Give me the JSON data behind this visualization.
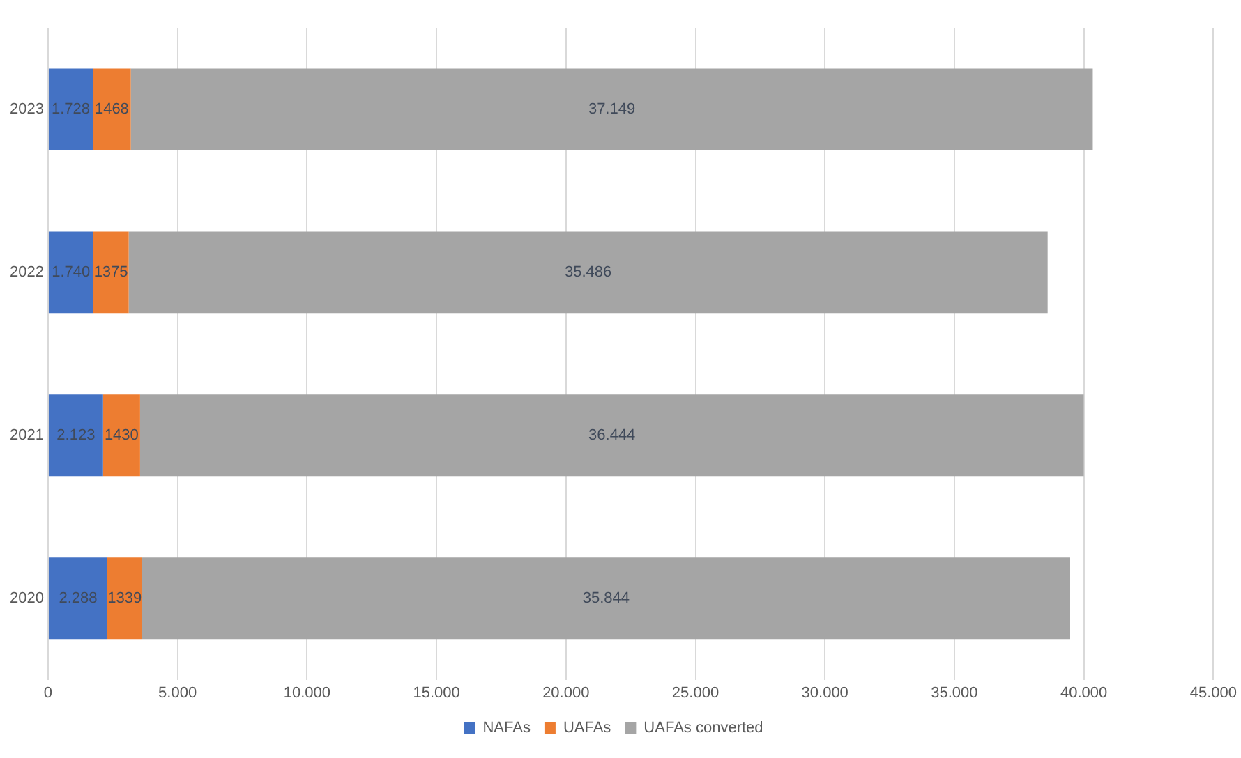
{
  "chart_data": {
    "type": "bar",
    "orientation": "horizontal",
    "stacked": true,
    "categories": [
      "2023",
      "2022",
      "2021",
      "2020"
    ],
    "series": [
      {
        "name": "NAFAs",
        "color": "#4472c4",
        "values": [
          1728,
          1740,
          2123,
          2288
        ],
        "value_labels": [
          "1.728",
          "1.740",
          "2.123",
          "2.288"
        ]
      },
      {
        "name": "UAFAs",
        "color": "#ed7d31",
        "values": [
          1468,
          1375,
          1430,
          1339
        ],
        "value_labels": [
          "1468",
          "1375",
          "1430",
          "1339"
        ]
      },
      {
        "name": "UAFAs converted",
        "color": "#a5a5a5",
        "values": [
          37149,
          35486,
          36444,
          35844
        ],
        "value_labels": [
          "37.149",
          "35.486",
          "36.444",
          "35.844"
        ]
      }
    ],
    "xlim": [
      0,
      45000
    ],
    "xticks": [
      0,
      {
        "value": 5000,
        "label": "5.000"
      },
      {
        "value": 10000,
        "label": "10.000"
      },
      {
        "value": 15000,
        "label": "15.000"
      },
      {
        "value": 20000,
        "label": "20.000"
      },
      {
        "value": 25000,
        "label": "25.000"
      },
      {
        "value": 30000,
        "label": "30.000"
      },
      {
        "value": 35000,
        "label": "35.000"
      },
      {
        "value": 40000,
        "label": "40.000"
      },
      {
        "value": 45000,
        "label": "45.000"
      }
    ],
    "grid": "x",
    "legend": "bottom"
  }
}
